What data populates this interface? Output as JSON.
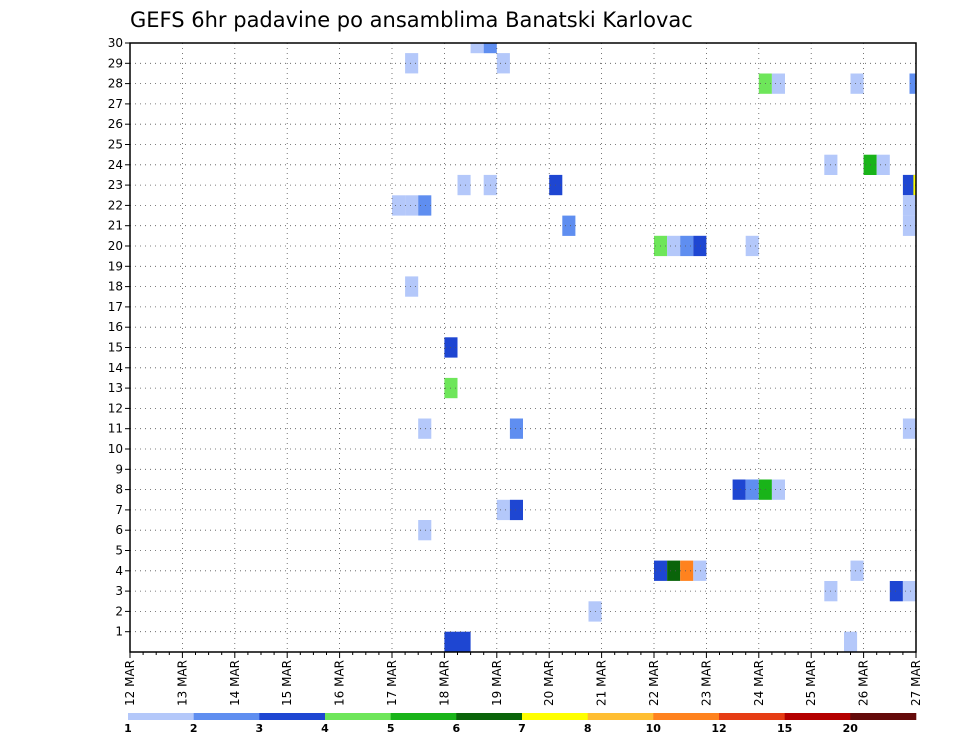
{
  "chart_data": {
    "type": "heatmap",
    "title": "GEFS 6hr padavine po ansamblima Banatski Karlovac",
    "xlabel": "",
    "ylabel": "",
    "x_tick_labels": [
      "12 MAR",
      "13 MAR",
      "14 MAR",
      "15 MAR",
      "16 MAR",
      "17 MAR",
      "18 MAR",
      "19 MAR",
      "20 MAR",
      "21 MAR",
      "22 MAR",
      "23 MAR",
      "24 MAR",
      "25 MAR",
      "26 MAR",
      "27 MAR"
    ],
    "x_unit": "6-hour step from 12 MAR 00z",
    "xlim": [
      0,
      60
    ],
    "ylim": [
      0,
      30
    ],
    "y_ticks": [
      1,
      2,
      3,
      4,
      5,
      6,
      7,
      8,
      9,
      10,
      11,
      12,
      13,
      14,
      15,
      16,
      17,
      18,
      19,
      20,
      21,
      22,
      23,
      24,
      25,
      26,
      27,
      28,
      29,
      30
    ],
    "grid": true,
    "colorbar": {
      "colors": [
        "#b4c8fa",
        "#5f8ef0",
        "#1e46d2",
        "#6ee65a",
        "#19b419",
        "#0a640a",
        "#ffff00",
        "#ffbe32",
        "#ff821e",
        "#e63c14",
        "#b40000",
        "#640a0a"
      ],
      "tick_labels": [
        "1",
        "2",
        "3",
        "4",
        "5",
        "6",
        "7",
        "8",
        "10",
        "12",
        "15",
        "20"
      ]
    },
    "cells": [
      {
        "t": 26.5,
        "m": 30,
        "c": 1
      },
      {
        "t": 27.5,
        "m": 30,
        "c": 2
      },
      {
        "t": 21.5,
        "m": 29,
        "c": 1
      },
      {
        "t": 28.5,
        "m": 29,
        "c": 1
      },
      {
        "t": 48.5,
        "m": 28,
        "c": 4
      },
      {
        "t": 49.5,
        "m": 28,
        "c": 1
      },
      {
        "t": 55.5,
        "m": 28,
        "c": 1
      },
      {
        "t": 60,
        "m": 28,
        "c": 2
      },
      {
        "t": 53.5,
        "m": 24,
        "c": 1
      },
      {
        "t": 56.5,
        "m": 24,
        "c": 5
      },
      {
        "t": 57.5,
        "m": 24,
        "c": 1
      },
      {
        "t": 25.5,
        "m": 23,
        "c": 1
      },
      {
        "t": 27.5,
        "m": 23,
        "c": 1
      },
      {
        "t": 32.5,
        "m": 23,
        "c": 3
      },
      {
        "t": 59.5,
        "m": 23,
        "c": 3
      },
      {
        "t": 60.3,
        "m": 23,
        "c": 7
      },
      {
        "t": 20.5,
        "m": 22,
        "c": 1
      },
      {
        "t": 21.5,
        "m": 22,
        "c": 1
      },
      {
        "t": 22.5,
        "m": 22,
        "c": 2
      },
      {
        "t": 59.5,
        "m": 22,
        "c": 1
      },
      {
        "t": 33.5,
        "m": 21,
        "c": 2
      },
      {
        "t": 59.5,
        "m": 21,
        "c": 1
      },
      {
        "t": 40.5,
        "m": 20,
        "c": 4
      },
      {
        "t": 41.5,
        "m": 20,
        "c": 1
      },
      {
        "t": 42.5,
        "m": 20,
        "c": 2
      },
      {
        "t": 43.5,
        "m": 20,
        "c": 3
      },
      {
        "t": 47.5,
        "m": 20,
        "c": 1
      },
      {
        "t": 21.5,
        "m": 18,
        "c": 1
      },
      {
        "t": 24.5,
        "m": 15,
        "c": 3
      },
      {
        "t": 24.5,
        "m": 13,
        "c": 4
      },
      {
        "t": 22.5,
        "m": 11,
        "c": 1
      },
      {
        "t": 29.5,
        "m": 11,
        "c": 2
      },
      {
        "t": 59.5,
        "m": 11,
        "c": 1
      },
      {
        "t": 46.5,
        "m": 8,
        "c": 3
      },
      {
        "t": 47.5,
        "m": 8,
        "c": 2
      },
      {
        "t": 48.5,
        "m": 8,
        "c": 5
      },
      {
        "t": 49.5,
        "m": 8,
        "c": 1
      },
      {
        "t": 28.5,
        "m": 7,
        "c": 1
      },
      {
        "t": 29.5,
        "m": 7,
        "c": 3
      },
      {
        "t": 22.5,
        "m": 6,
        "c": 1
      },
      {
        "t": 40.5,
        "m": 4,
        "c": 3
      },
      {
        "t": 41.5,
        "m": 4,
        "c": 6
      },
      {
        "t": 42.5,
        "m": 4,
        "c": 9
      },
      {
        "t": 43.5,
        "m": 4,
        "c": 1
      },
      {
        "t": 55.5,
        "m": 4,
        "c": 1
      },
      {
        "t": 53.5,
        "m": 3,
        "c": 1
      },
      {
        "t": 58.5,
        "m": 3,
        "c": 3
      },
      {
        "t": 59.5,
        "m": 3,
        "c": 1
      },
      {
        "t": 35.5,
        "m": 2,
        "c": 1
      },
      {
        "t": 24.5,
        "m": 0.5,
        "c": 3
      },
      {
        "t": 25.5,
        "m": 0.5,
        "c": 3
      },
      {
        "t": 55,
        "m": 0.5,
        "c": 1
      }
    ]
  }
}
